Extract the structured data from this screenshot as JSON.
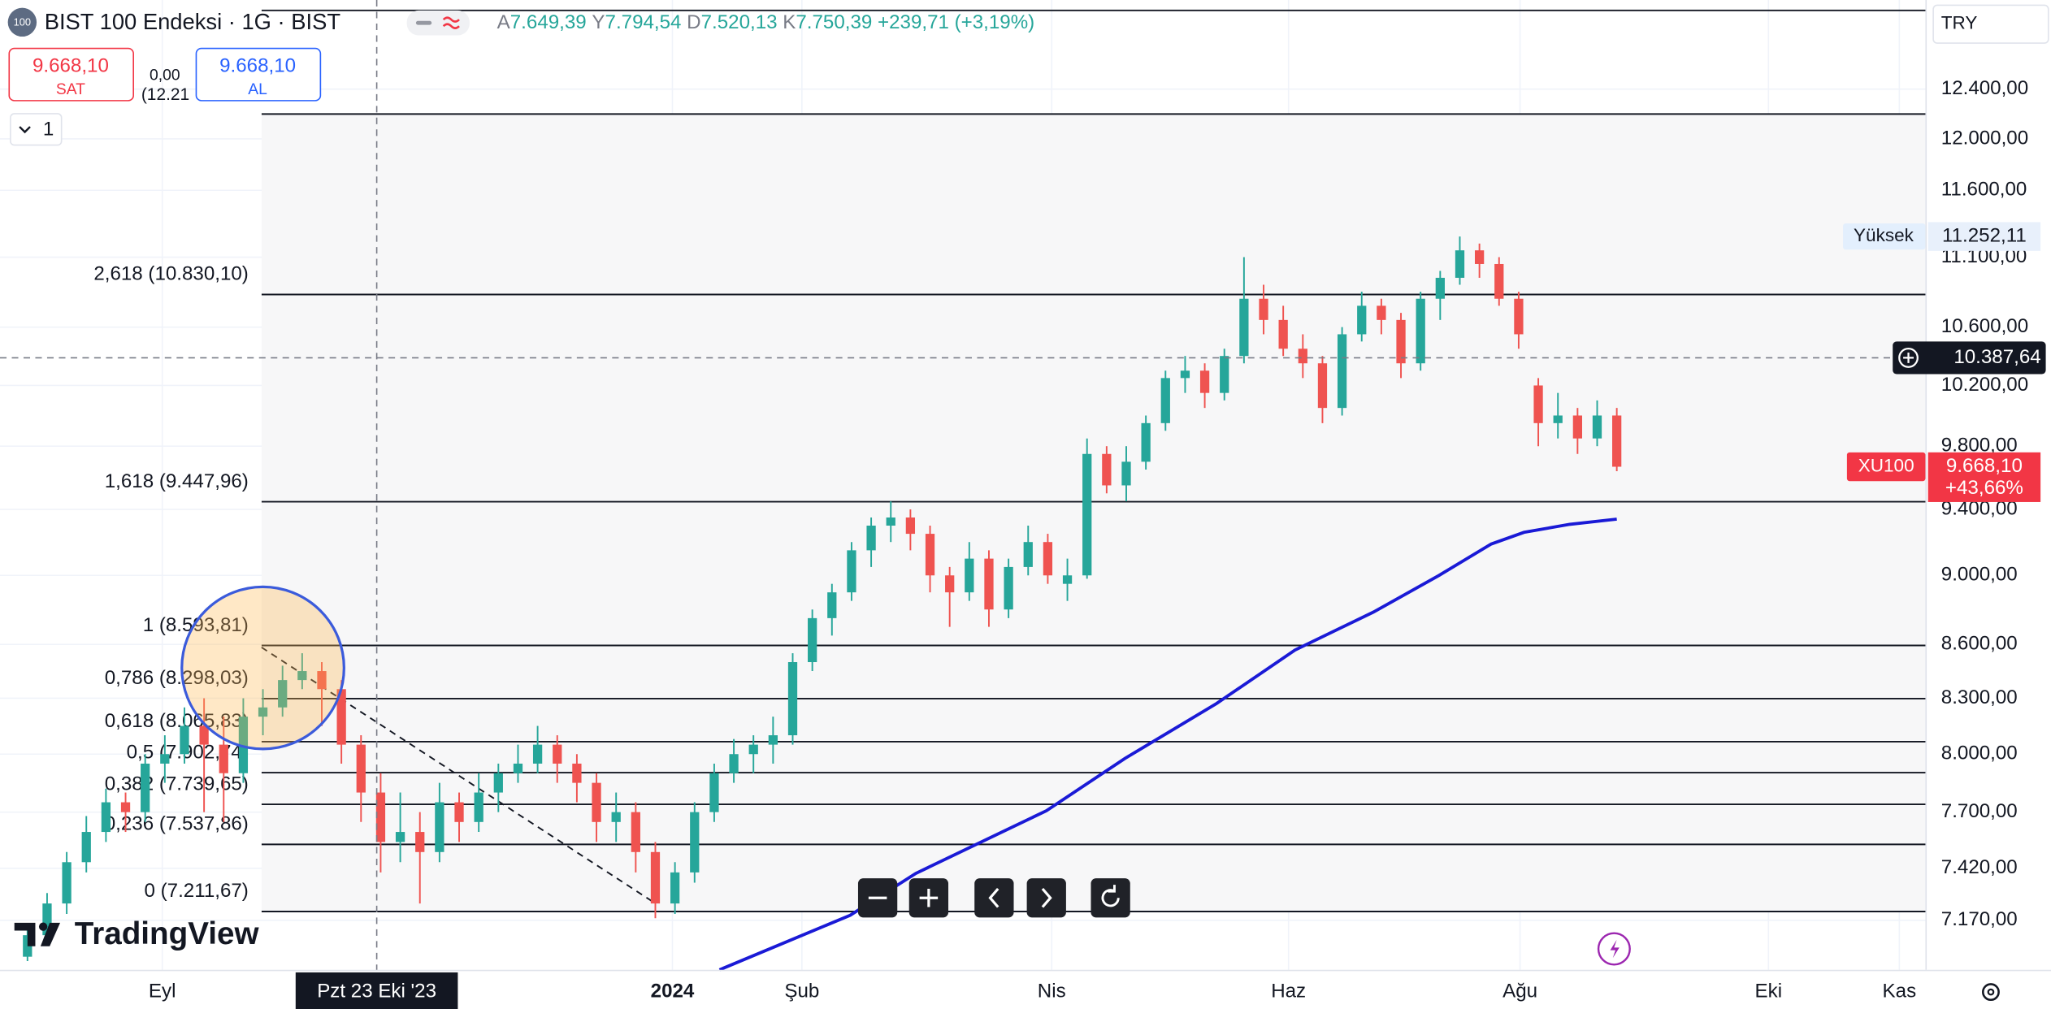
{
  "header": {
    "badge": "100",
    "symbol": "BIST 100 Endeksi · 1G · BIST",
    "ohlc": [
      {
        "label": "A",
        "value": "7.649,39"
      },
      {
        "label": "Y",
        "value": "7.794,54"
      },
      {
        "label": "D",
        "value": "7.520,13"
      },
      {
        "label": "K",
        "value": "7.750,39"
      }
    ],
    "change": "+239,71 (+3,19%)",
    "sell": {
      "price": "9.668,10",
      "label": "SAT"
    },
    "buy": {
      "price": "9.668,10",
      "label": "AL"
    },
    "spread": "0,00",
    "spread_sub": "(12.21",
    "indicator_count": "1",
    "currency": "TRY",
    "brand": "TradingView"
  },
  "chart_data": {
    "type": "candlestick",
    "log": true,
    "grid": true,
    "up_color": "#26a69a",
    "down_color": "#ef5350",
    "open": [
      7000,
      7100,
      7250,
      7450,
      7600,
      7750,
      7700,
      7950,
      8000,
      8150,
      8050,
      7900,
      8200,
      8250,
      8400,
      8450,
      8350,
      8050,
      7800,
      7550,
      7600,
      7500,
      7750,
      7650,
      7800,
      7900,
      7950,
      8050,
      7950,
      7850,
      7650,
      7700,
      7500,
      7250,
      7400,
      7700,
      7900,
      8000,
      8050,
      8100,
      8500,
      8750,
      8900,
      9150,
      9300,
      9350,
      9250,
      9000,
      8900,
      9100,
      8800,
      9050,
      9200,
      8950,
      9000,
      9750,
      9550,
      9700,
      9950,
      10250,
      10300,
      10150,
      10400,
      10800,
      10650,
      10450,
      10350,
      10050,
      10550,
      10750,
      10650,
      10350,
      10800,
      10950,
      11150,
      11050,
      10800,
      10200,
      9950,
      10000,
      9850,
      10000
    ],
    "high": [
      7150,
      7300,
      7500,
      7680,
      7820,
      7800,
      8000,
      8100,
      8250,
      8300,
      8200,
      8300,
      8350,
      8480,
      8550,
      8500,
      8400,
      8100,
      7900,
      7800,
      7700,
      7850,
      7800,
      7900,
      7950,
      8050,
      8150,
      8100,
      8000,
      7900,
      7800,
      7750,
      7550,
      7450,
      7750,
      7950,
      8080,
      8100,
      8200,
      8550,
      8800,
      8950,
      9200,
      9350,
      9450,
      9400,
      9300,
      9050,
      9200,
      9150,
      9100,
      9300,
      9250,
      9100,
      9850,
      9800,
      9800,
      10000,
      10300,
      10400,
      10350,
      10450,
      11100,
      10900,
      10750,
      10550,
      10400,
      10600,
      10850,
      10800,
      10700,
      10850,
      11000,
      11252.11,
      11200,
      11100,
      10850,
      10250,
      10150,
      10050,
      10100,
      10050
    ],
    "low": [
      6980,
      7080,
      7200,
      7400,
      7550,
      7600,
      7650,
      7850,
      7950,
      7700,
      7650,
      7850,
      8100,
      8200,
      8350,
      8150,
      7950,
      7650,
      7400,
      7450,
      7250,
      7450,
      7550,
      7600,
      7700,
      7850,
      7900,
      7850,
      7750,
      7550,
      7550,
      7400,
      7180,
      7200,
      7350,
      7650,
      7850,
      7900,
      7950,
      8050,
      8450,
      8650,
      8850,
      9050,
      9200,
      9150,
      8900,
      8700,
      8850,
      8700,
      8750,
      9000,
      8950,
      8850,
      8980,
      9500,
      9450,
      9650,
      9900,
      10150,
      10050,
      10100,
      10350,
      10550,
      10400,
      10250,
      9950,
      10000,
      10500,
      10550,
      10250,
      10300,
      10650,
      10900,
      10950,
      10750,
      10450,
      9800,
      9850,
      9750,
      9800,
      9640
    ],
    "close": [
      7100,
      7250,
      7450,
      7600,
      7750,
      7700,
      7950,
      8000,
      8150,
      8050,
      7900,
      8200,
      8250,
      8400,
      8450,
      8350,
      8050,
      7800,
      7550,
      7600,
      7500,
      7750,
      7650,
      7800,
      7900,
      7950,
      8050,
      7950,
      7850,
      7650,
      7700,
      7500,
      7250,
      7400,
      7700,
      7900,
      8000,
      8050,
      8100,
      8500,
      8750,
      8900,
      9150,
      9300,
      9350,
      9250,
      9000,
      8900,
      9100,
      8800,
      9050,
      9200,
      9000,
      9000,
      9750,
      9550,
      9700,
      9950,
      10250,
      10300,
      10150,
      10400,
      10800,
      10650,
      10450,
      10350,
      10050,
      10550,
      10750,
      10650,
      10350,
      10800,
      10950,
      11150,
      11050,
      10800,
      10550,
      9950,
      10000,
      9850,
      10000,
      9668.1
    ],
    "ma": {
      "color": "#1a1ad6",
      "x": [
        35.27,
        41.93,
        45.27,
        51.93,
        55.93,
        60.6,
        64.6,
        68.6,
        71.93,
        74.6,
        76.27,
        78.6,
        81
      ],
      "values": [
        6940,
        7194,
        7395,
        7707,
        7977,
        8271,
        8568,
        8785,
        8999,
        9188,
        9259,
        9308,
        9340
      ]
    },
    "trend_line": {
      "x": [
        11.93,
        31.93
      ],
      "values": [
        8583,
        7255
      ]
    },
    "fib_levels": [
      {
        "label": "2,618 (10.830,10)",
        "value": 10830.1
      },
      {
        "label": "1,618 (9.447,96)",
        "value": 9447.96
      },
      {
        "label": "1 (8.593,81)",
        "value": 8593.81
      },
      {
        "label": "0,786 (8.298,03)",
        "value": 8298.03
      },
      {
        "label": "0,618 (8.065,83)",
        "value": 8065.83
      },
      {
        "label": "0,5 (7.902,74)",
        "value": 7902.74
      },
      {
        "label": "0,382 (7.739,65)",
        "value": 7739.65
      },
      {
        "label": "0,236 (7.537,86)",
        "value": 7537.86
      },
      {
        "label": "0 (7.211,67)",
        "value": 7211.67
      }
    ],
    "extra_lines": [
      12198,
      13060
    ],
    "xlim": [
      -1.4,
      96.73
    ],
    "ylim": [
      6940,
      13150
    ],
    "xticks": [
      {
        "value": 6.87,
        "label": "Eyl"
      },
      {
        "value": 32.87,
        "label": "2024"
      },
      {
        "value": 39.47,
        "label": "Şub"
      },
      {
        "value": 52.2,
        "label": "Nis"
      },
      {
        "value": 64.27,
        "label": "Haz"
      },
      {
        "value": 76.07,
        "label": "Ağu"
      },
      {
        "value": 88.73,
        "label": "Eki"
      },
      {
        "value": 95.4,
        "label": "Kas"
      }
    ],
    "yticks": [
      {
        "value": 12400,
        "label": "12.400,00"
      },
      {
        "value": 12000,
        "label": "12.000,00"
      },
      {
        "value": 11600,
        "label": "11.600,00"
      },
      {
        "value": 11100,
        "label": "11.100,00"
      },
      {
        "value": 10600,
        "label": "10.600,00"
      },
      {
        "value": 10200,
        "label": "10.200,00"
      },
      {
        "value": 9800,
        "label": "9.800,00"
      },
      {
        "value": 9400,
        "label": "9.400,00"
      },
      {
        "value": 9000,
        "label": "9.000,00"
      },
      {
        "value": 8600,
        "label": "8.600,00"
      },
      {
        "value": 8300,
        "label": "8.300,00"
      },
      {
        "value": 8000,
        "label": "8.000,00"
      },
      {
        "value": 7700,
        "label": "7.700,00"
      },
      {
        "value": 7420,
        "label": "7.420,00"
      },
      {
        "value": 7170,
        "label": "7.170,00"
      }
    ],
    "crosshair": {
      "x": 17.8,
      "x_label": "Pzt 23 Eki '23",
      "y": 10387.64,
      "y_label": "10.387,64"
    },
    "high_marker": {
      "label": "Yüksek",
      "value": 11252.11,
      "value_label": "11.252,11"
    },
    "last": {
      "name": "XU100",
      "value": 9668.1,
      "value_label": "9.668,10",
      "change": "+43,66%"
    }
  }
}
